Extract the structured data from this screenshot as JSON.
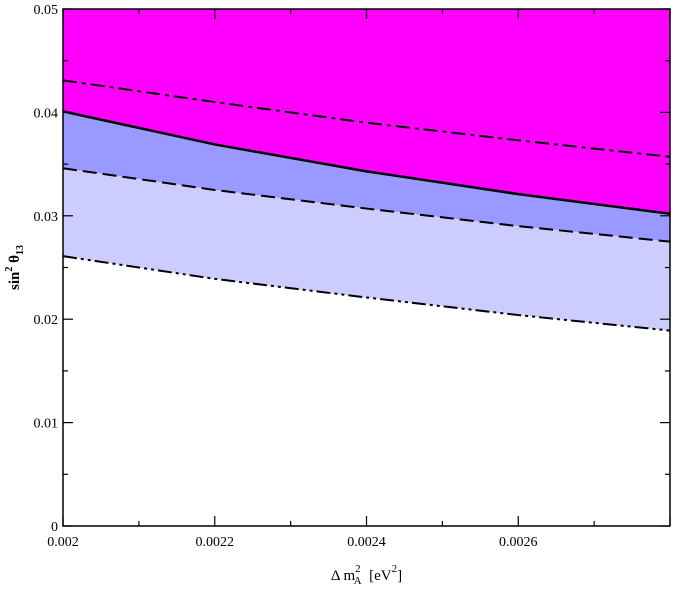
{
  "chart_data": {
    "type": "area",
    "xlim": [
      0.002,
      0.0028
    ],
    "ylim": [
      0,
      0.05
    ],
    "x_ticks": [
      {
        "value": 0.002,
        "label": "0.002"
      },
      {
        "value": 0.0022,
        "label": "0.0022"
      },
      {
        "value": 0.0024,
        "label": "0.0024"
      },
      {
        "value": 0.0026,
        "label": "0.0026"
      }
    ],
    "y_ticks": [
      {
        "value": 0,
        "label": "0"
      },
      {
        "value": 0.01,
        "label": "0.01"
      },
      {
        "value": 0.02,
        "label": "0.02"
      },
      {
        "value": 0.03,
        "label": "0.03"
      },
      {
        "value": 0.04,
        "label": "0.04"
      },
      {
        "value": 0.05,
        "label": "0.05"
      }
    ],
    "xlabel": {
      "prefix": "Δ m",
      "sup": "2",
      "sub": "A",
      "suffix": "  [eV",
      "suffix_sup": "2",
      "end": "]"
    },
    "ylabel": {
      "prefix": "sin",
      "sup": "2",
      "mid": " θ",
      "sub": "13"
    },
    "grid": false,
    "series": [
      {
        "style": "dash-dot",
        "x": [
          0.002,
          0.0022,
          0.0024,
          0.0026,
          0.0028
        ],
        "y": [
          0.0431,
          0.041,
          0.039,
          0.0373,
          0.0357
        ]
      },
      {
        "style": "solid",
        "x": [
          0.002,
          0.0022,
          0.0024,
          0.0026,
          0.0028
        ],
        "y": [
          0.0401,
          0.0369,
          0.0343,
          0.0321,
          0.0302
        ]
      },
      {
        "style": "dashed",
        "x": [
          0.002,
          0.0022,
          0.0024,
          0.0026,
          0.0028
        ],
        "y": [
          0.0346,
          0.0325,
          0.0307,
          0.029,
          0.0275
        ]
      },
      {
        "style": "dash-dot-dot",
        "x": [
          0.002,
          0.0022,
          0.0024,
          0.0026,
          0.0028
        ],
        "y": [
          0.0261,
          0.0239,
          0.0221,
          0.0204,
          0.0189
        ]
      }
    ],
    "regions": [
      {
        "color": "#ff00ff",
        "from_series": 1,
        "to": "top"
      },
      {
        "color": "#9999ff",
        "from_series": 2,
        "to_series": 1
      },
      {
        "color": "#ccccff",
        "from_series": 3,
        "to_series": 2
      }
    ]
  }
}
